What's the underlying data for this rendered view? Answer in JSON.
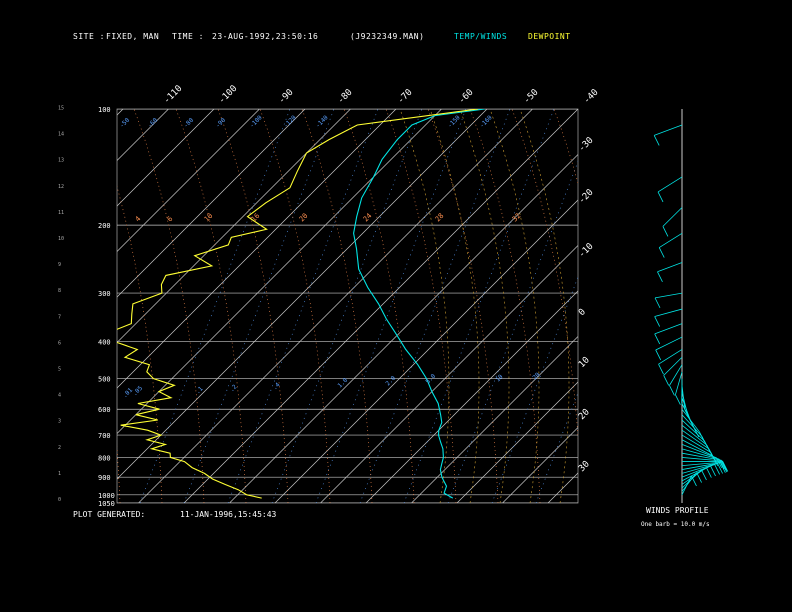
{
  "header": {
    "site_label": "SITE :",
    "site_value": "FIXED, MAN",
    "time_label": "TIME :",
    "time_value": "23-AUG-1992,23:50:16",
    "file": "(J9232349.MAN)",
    "legend_temp": "TEMP/WINDS",
    "legend_dew": "DEWPOINT"
  },
  "footer": {
    "generated_label": "PLOT GENERATED:",
    "generated_value": "11-JAN-1996,15:45:43",
    "winds_title": "WINDS PROFILE",
    "winds_note": "One barb = 10.0 m/s"
  },
  "colors": {
    "temp": "#00e5e5",
    "dewpoint": "#ffff33",
    "isotherm": "#c8c8c8",
    "isobar": "#c8c8c8",
    "mixing_ratio": "#5aa0ff",
    "dry_adiabat": "#ff9050",
    "moist_adiabat": "#d0a030",
    "wind": "#00e5e5"
  },
  "chart_data": {
    "type": "line",
    "chart_kind": "skew-T log-P",
    "y_axis_pressure_labels": [
      "100",
      "200",
      "300",
      "400",
      "500",
      "600",
      "700",
      "800",
      "900",
      "1000",
      "1050"
    ],
    "y_axis_pressure_values": [
      100,
      200,
      300,
      400,
      500,
      600,
      700,
      800,
      900,
      1000,
      1050
    ],
    "y_axis_height_labels": [
      "0",
      "1",
      "2",
      "3",
      "4",
      "5",
      "6",
      "7",
      "8",
      "9",
      "10",
      "11",
      "12",
      "13",
      "14",
      "15"
    ],
    "temperature_tick_labels_top": [
      "-110",
      "-100",
      "-90",
      "-80",
      "-70",
      "-60",
      "-50",
      "-40"
    ],
    "temperature_tick_labels_right": [
      "-30",
      "-20",
      "-10",
      "0",
      "10",
      "20",
      "30"
    ],
    "mixing_ratio_labels": [
      ".01",
      ".05",
      ".1",
      ".2",
      ".4",
      "1.0",
      "2.0",
      "5.0",
      "10",
      "20"
    ],
    "dry_adiabat_labels_upper": [
      "-50",
      "-60",
      "-80",
      "-90",
      "-100",
      "-120",
      "-140",
      "-150",
      "-160"
    ],
    "dry_adiabat_labels_mid": [
      "4",
      "6",
      "10",
      "16",
      "20",
      "24",
      "28",
      "32"
    ],
    "series": [
      {
        "name": "TEMP/WINDS",
        "pressure": [
          100,
          104,
          110,
          120,
          135,
          150,
          170,
          190,
          210,
          230,
          260,
          290,
          320,
          350,
          380,
          420,
          460,
          500,
          540,
          580,
          620,
          650,
          680,
          700,
          730,
          760,
          800,
          830,
          860,
          900,
          950,
          990,
          1020
        ],
        "temperature": [
          -60.5,
          -70,
          -73,
          -73,
          -72,
          -70,
          -68,
          -65,
          -62,
          -58,
          -53,
          -47,
          -41,
          -36,
          -31,
          -25,
          -19,
          -14,
          -10,
          -6,
          -3,
          -1,
          0,
          1,
          3,
          5,
          7,
          8,
          9,
          11,
          14,
          15,
          18
        ]
      },
      {
        "name": "DEWPOINT",
        "pressure": [
          100,
          110,
          120,
          130,
          145,
          160,
          175,
          190,
          205,
          215,
          225,
          240,
          255,
          270,
          285,
          300,
          320,
          340,
          360,
          380,
          400,
          420,
          440,
          460,
          480,
          500,
          520,
          540,
          560,
          580,
          600,
          620,
          640,
          660,
          680,
          700,
          720,
          740,
          760,
          780,
          800,
          820,
          850,
          880,
          910,
          940,
          970,
          1000,
          1020
        ],
        "dewpoint": [
          -62,
          -85,
          -88,
          -90,
          -88,
          -86,
          -88,
          -89,
          -82,
          -88,
          -87,
          -92,
          -86,
          -94,
          -93,
          -91,
          -95,
          -93,
          -91,
          -94,
          -91,
          -84,
          -85,
          -78,
          -77,
          -74,
          -68,
          -70,
          -66,
          -72,
          -66,
          -70,
          -64,
          -71,
          -64,
          -60,
          -62,
          -57,
          -59,
          -54,
          -53,
          -49,
          -46,
          -42,
          -39,
          -35,
          -31,
          -28,
          -24
        ]
      }
    ],
    "winds": {
      "pressure": [
        110,
        150,
        180,
        210,
        250,
        300,
        330,
        360,
        390,
        420,
        440,
        460,
        480,
        500,
        520,
        540,
        560,
        580,
        600,
        620,
        640,
        660,
        680,
        700,
        720,
        740,
        760,
        780,
        800,
        820,
        840,
        860,
        880,
        900,
        920,
        940,
        960,
        980,
        1000
      ],
      "direction_deg": [
        290,
        300,
        310,
        300,
        290,
        280,
        285,
        290,
        295,
        300,
        310,
        320,
        330,
        340,
        345,
        350,
        355,
        0,
        10,
        15,
        20,
        25,
        30,
        35,
        40,
        50,
        60,
        70,
        80,
        90,
        100,
        110,
        120,
        130,
        140,
        150,
        160,
        170,
        180
      ],
      "speed_ms": [
        42,
        40,
        38,
        35,
        30,
        32,
        36,
        40,
        42,
        38,
        34,
        30,
        28,
        26,
        24,
        22,
        20,
        18,
        16,
        15,
        14,
        13,
        12,
        11,
        10,
        10,
        9,
        9,
        8,
        8,
        7,
        7,
        6,
        6,
        5,
        5,
        4,
        4,
        3
      ]
    }
  }
}
